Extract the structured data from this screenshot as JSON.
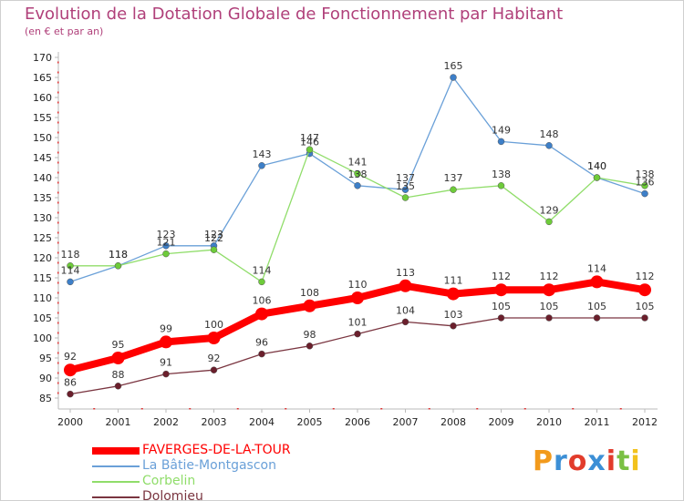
{
  "chart_data": {
    "type": "line",
    "title": "Evolution de la Dotation Globale de Fonctionnement par Habitant",
    "subtitle": "(en € et par an)",
    "x": [
      "2000",
      "2001",
      "2002",
      "2003",
      "2004",
      "2005",
      "2006",
      "2007",
      "2008",
      "2009",
      "2010",
      "2011",
      "2012"
    ],
    "ylim": [
      85,
      170
    ],
    "yticks": [
      85,
      90,
      95,
      100,
      105,
      110,
      115,
      120,
      125,
      130,
      135,
      140,
      145,
      150,
      155,
      160,
      165,
      170
    ],
    "grid": false,
    "legend_position": "bottom-left",
    "series": [
      {
        "name": "FAVERGES-DE-LA-TOUR",
        "color": "#ff0000",
        "width": 8,
        "marker": 7,
        "label_offset": -11,
        "values": [
          92,
          95,
          99,
          100,
          106,
          108,
          110,
          113,
          111,
          112,
          112,
          114,
          112
        ]
      },
      {
        "name": "La Bâtie-Montgascon",
        "color": "#6aa0d8",
        "marker_color": "#3d7fc8",
        "width": 1.3,
        "marker": 3.5,
        "label_offset": -9,
        "values": [
          114,
          118,
          123,
          123,
          143,
          146,
          138,
          137,
          165,
          149,
          148,
          140,
          136
        ]
      },
      {
        "name": "Corbelin",
        "color": "#90dd6a",
        "marker_color": "#6ecb3a",
        "width": 1.3,
        "marker": 3.5,
        "label_offset": -9,
        "values": [
          118,
          118,
          121,
          122,
          114,
          147,
          141,
          135,
          137,
          138,
          129,
          140,
          138
        ]
      },
      {
        "name": "Dolomieu",
        "color": "#7a3540",
        "marker_color": "#6b1f2c",
        "width": 1.3,
        "marker": 3.5,
        "label_offset": -9,
        "values": [
          86,
          88,
          91,
          92,
          96,
          98,
          101,
          104,
          103,
          105,
          105,
          105,
          105
        ]
      }
    ]
  },
  "logo": {
    "text": "Proxiti",
    "colors": [
      "#f29a1c",
      "#3c8fd6",
      "#e23c2c",
      "#3c8fd6",
      "#e23c2c",
      "#7ac043",
      "#f2c21c"
    ]
  }
}
